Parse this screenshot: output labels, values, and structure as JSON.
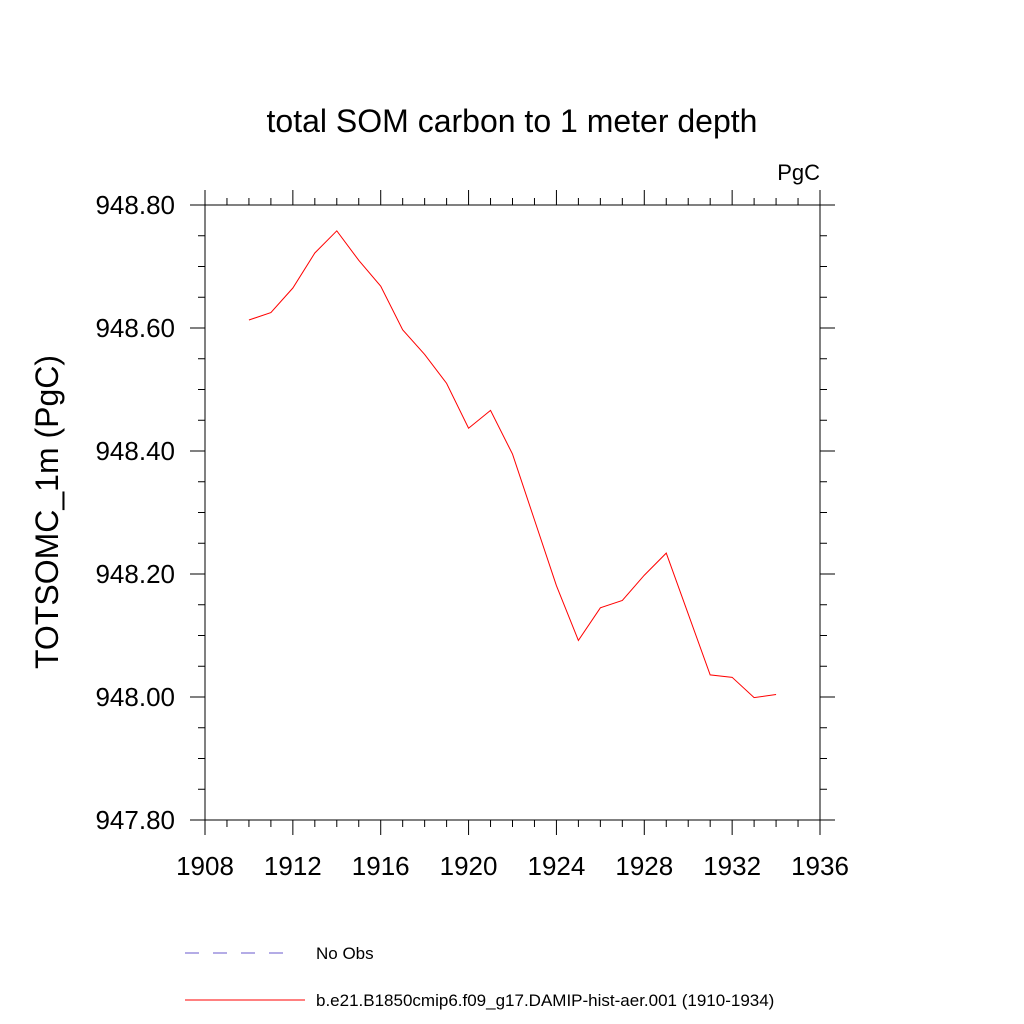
{
  "chart_data": {
    "type": "line",
    "title": "total SOM carbon to 1 meter depth",
    "units_label": "PgC",
    "ylabel": "TOTSOMC_1m  (PgC)",
    "xlabel": "",
    "xlim": [
      1908,
      1936
    ],
    "ylim": [
      947.8,
      948.8
    ],
    "x_ticks": [
      "1908",
      "1912",
      "1916",
      "1920",
      "1924",
      "1928",
      "1932",
      "1936"
    ],
    "y_ticks": [
      "947.80",
      "948.00",
      "948.20",
      "948.40",
      "948.60",
      "948.80"
    ],
    "x_tick_values": [
      1908,
      1912,
      1916,
      1920,
      1924,
      1928,
      1932,
      1936
    ],
    "y_tick_values": [
      947.8,
      948.0,
      948.2,
      948.4,
      948.6,
      948.8
    ],
    "grid": false,
    "legend_position": "bottom",
    "legend": [
      {
        "label": "No Obs",
        "color": "#6a5acd",
        "style": "dashed"
      },
      {
        "label": "b.e21.B1850cmip6.f09_g17.DAMIP-hist-aer.001 (1910-1934)",
        "color": "#ff0000",
        "style": "solid"
      }
    ],
    "series": [
      {
        "name": "b.e21.B1850cmip6.f09_g17.DAMIP-hist-aer.001 (1910-1934)",
        "color": "#ff0000",
        "x": [
          1910,
          1911,
          1912,
          1913,
          1914,
          1915,
          1916,
          1917,
          1918,
          1919,
          1920,
          1921,
          1922,
          1923,
          1924,
          1925,
          1926,
          1927,
          1928,
          1929,
          1930,
          1931,
          1932,
          1933,
          1934
        ],
        "y": [
          948.613,
          948.625,
          948.665,
          948.722,
          948.758,
          948.71,
          948.668,
          948.597,
          948.557,
          948.51,
          948.437,
          948.466,
          948.395,
          948.288,
          948.181,
          948.092,
          948.145,
          948.157,
          948.198,
          948.234,
          948.135,
          948.036,
          948.032,
          947.999,
          948.004
        ]
      }
    ]
  }
}
